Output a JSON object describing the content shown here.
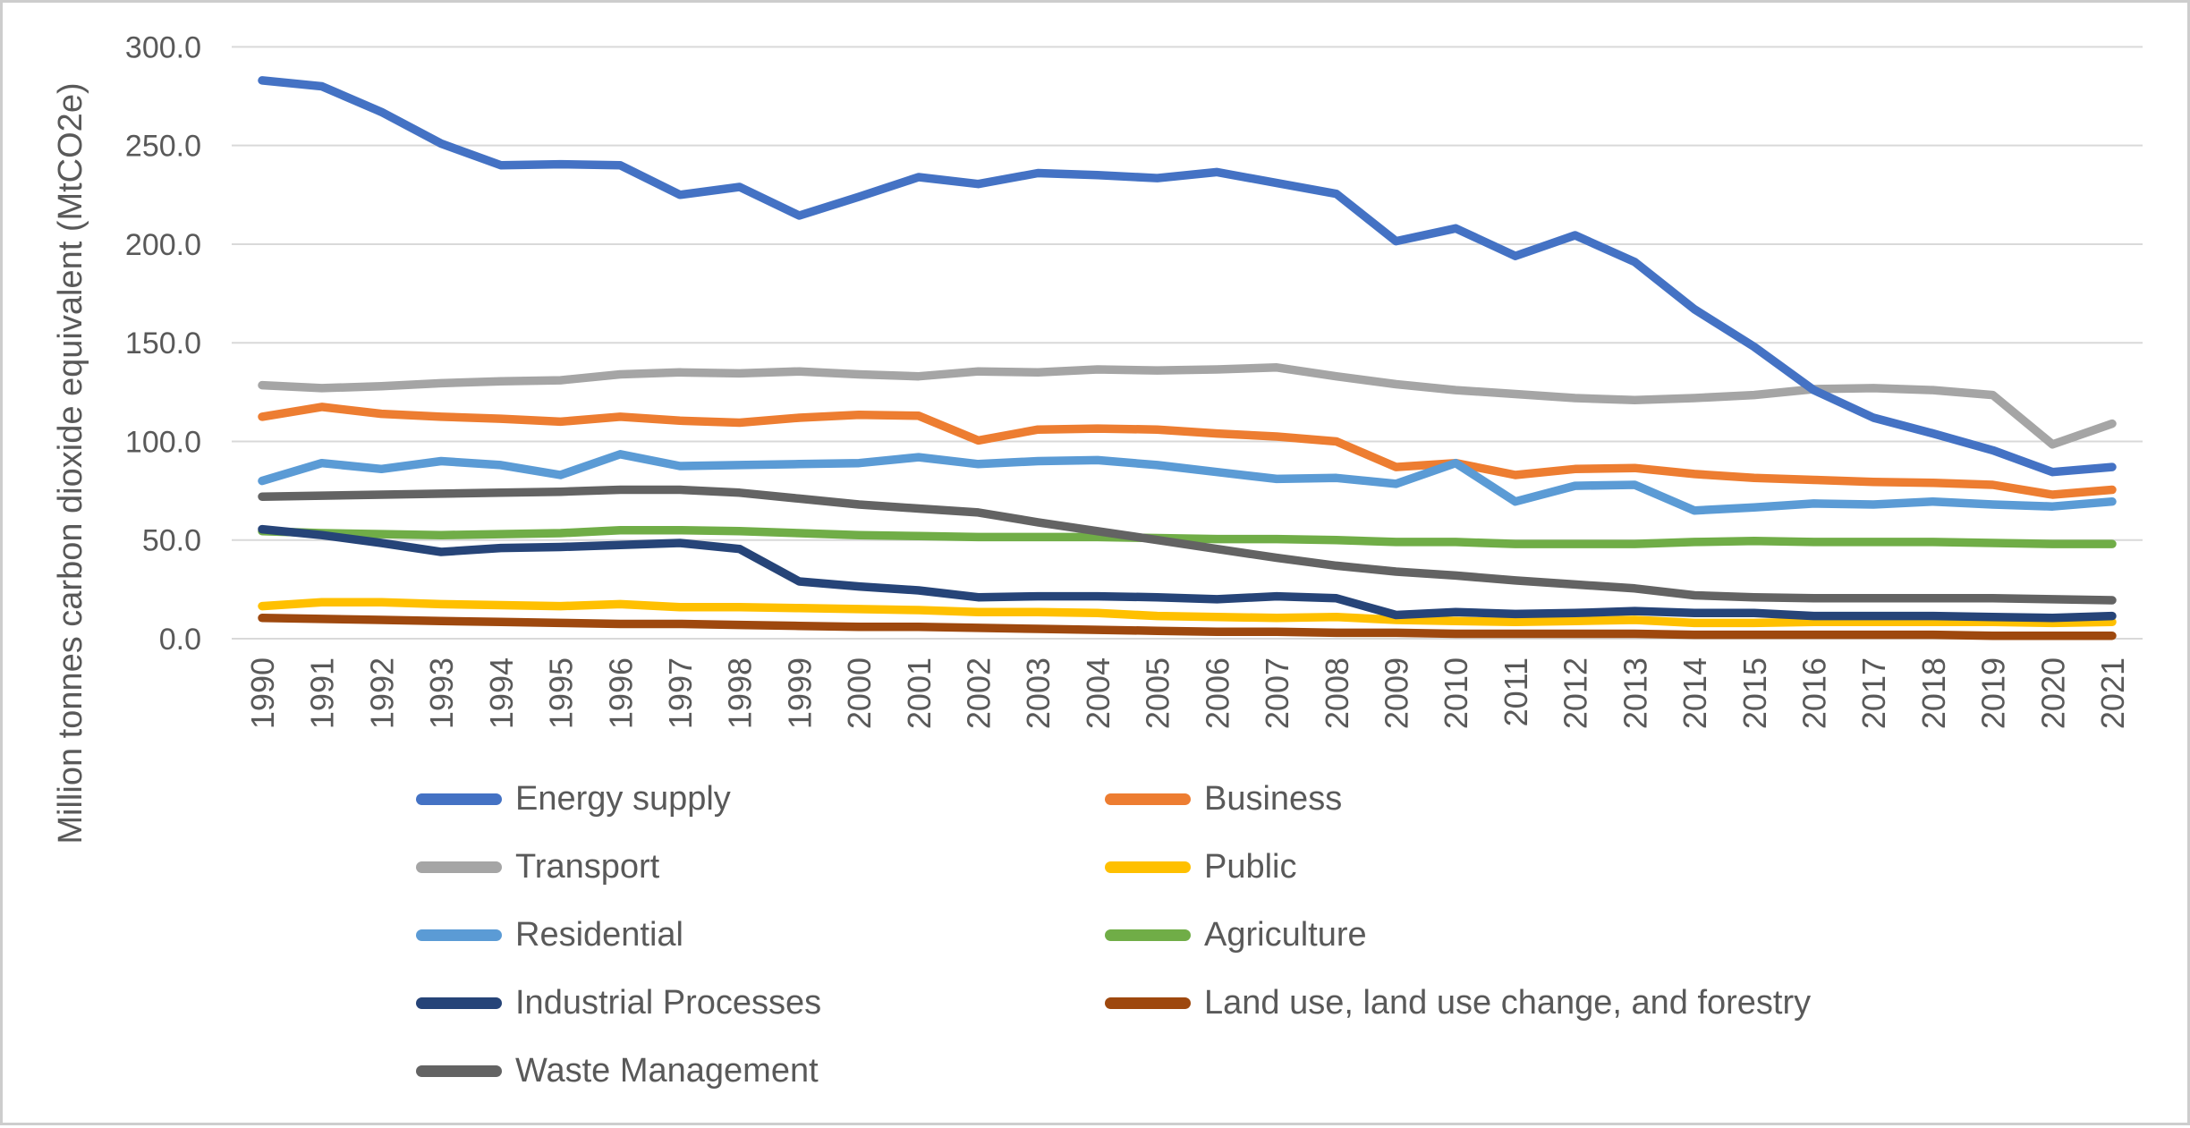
{
  "colors": {
    "grid": "#d9d9d9",
    "axis_text": "#595959",
    "frame_border": "#cdcdcd",
    "background": "#ffffff"
  },
  "chart_data": {
    "type": "line",
    "title": "",
    "ylabel": "Million tonnes carbon dioxide equivalent (MtCO2e)",
    "xlabel": "",
    "ylim": [
      0,
      300
    ],
    "y_tick_labels": [
      "0.0",
      "50.0",
      "100.0",
      "150.0",
      "200.0",
      "250.0",
      "300.0"
    ],
    "y_tick_values": [
      0,
      50,
      100,
      150,
      200,
      250,
      300
    ],
    "grid": "horizontal",
    "legend_position": "bottom",
    "x": [
      "1990",
      "1991",
      "1992",
      "1993",
      "1994",
      "1995",
      "1996",
      "1997",
      "1998",
      "1999",
      "2000",
      "2001",
      "2002",
      "2003",
      "2004",
      "2005",
      "2006",
      "2007",
      "2008",
      "2009",
      "2010",
      "2011",
      "2012",
      "2013",
      "2014",
      "2015",
      "2016",
      "2017",
      "2018",
      "2019",
      "2020",
      "2021"
    ],
    "series": [
      {
        "key": "energy-supply",
        "name": "Energy supply",
        "color": "#4472c4",
        "values": [
          283,
          280,
          267,
          251,
          240,
          240.5,
          240,
          225,
          229,
          214.5,
          224,
          234,
          230.5,
          236,
          235,
          233.5,
          236.5,
          231,
          225.5,
          201.5,
          208,
          194,
          204.5,
          191,
          167,
          148,
          126,
          112,
          104,
          95.5,
          84.5,
          87
        ]
      },
      {
        "key": "business",
        "name": "Business",
        "color": "#ed7d31",
        "values": [
          112.5,
          117.5,
          114,
          112.5,
          111.5,
          110,
          112.5,
          110.5,
          109.5,
          112,
          113.5,
          113,
          100.5,
          106,
          106.5,
          106,
          104,
          102.5,
          100,
          87,
          89,
          83,
          86,
          86.5,
          83.5,
          81.5,
          80.5,
          79.5,
          79,
          78,
          73,
          75.5
        ]
      },
      {
        "key": "transport",
        "name": "Transport",
        "color": "#a5a5a5",
        "values": [
          128.5,
          127,
          128,
          129.5,
          130.5,
          131,
          134,
          135,
          134.5,
          135.5,
          134,
          133,
          135.5,
          135,
          136.5,
          136,
          136.5,
          137.5,
          133,
          129,
          126,
          124,
          122,
          121,
          122,
          123.5,
          126.5,
          127,
          126,
          123.5,
          98.5,
          109
        ]
      },
      {
        "key": "public",
        "name": "Public",
        "color": "#ffc000",
        "values": [
          16.5,
          18.5,
          18.5,
          17.5,
          17,
          16.5,
          17.5,
          16,
          16,
          15.5,
          15,
          14.5,
          13.5,
          13.5,
          13,
          11.5,
          11,
          10.5,
          11,
          9.5,
          9,
          8.5,
          9,
          9.5,
          8,
          8,
          8.5,
          8.5,
          8.5,
          8.5,
          8,
          8.5
        ]
      },
      {
        "key": "residential",
        "name": "Residential",
        "color": "#5b9bd5",
        "values": [
          80,
          89,
          86,
          90,
          88,
          83,
          93.5,
          87.5,
          88,
          88.5,
          89,
          92,
          88.5,
          90,
          90.5,
          88,
          84.5,
          81,
          81.5,
          78.5,
          89,
          69.5,
          77.5,
          78,
          65,
          66.5,
          68.5,
          68,
          69.5,
          68,
          67,
          69.5
        ]
      },
      {
        "key": "agriculture",
        "name": "Agriculture",
        "color": "#70ad47",
        "values": [
          54.5,
          53.5,
          53,
          52.5,
          53,
          53.5,
          55,
          55,
          54.5,
          53.5,
          52.5,
          52,
          51.5,
          51.5,
          51.5,
          51,
          50.5,
          50.5,
          50,
          49,
          49,
          48,
          48,
          48,
          49,
          49.5,
          49,
          49,
          49,
          48.5,
          48,
          48
        ]
      },
      {
        "key": "industrial-processes",
        "name": "Industrial Processes",
        "color": "#264478",
        "values": [
          55.5,
          52.5,
          48.5,
          44,
          46,
          46.5,
          47.5,
          48.5,
          45.5,
          29,
          26.5,
          24.5,
          21,
          21.5,
          21.5,
          21,
          20,
          21.5,
          20.5,
          12,
          13.5,
          12.5,
          13,
          14,
          13,
          13,
          11.5,
          11.5,
          11.5,
          11,
          10.5,
          11.5
        ]
      },
      {
        "key": "land-use",
        "name": "Land use, land use change, and forestry",
        "color": "#9e480e",
        "values": [
          10.5,
          10,
          9.5,
          9,
          8.5,
          8,
          7.5,
          7.5,
          7,
          6.5,
          6,
          6,
          5.5,
          5,
          4.5,
          4,
          3.5,
          3.5,
          3,
          3,
          2.5,
          2.5,
          2.5,
          2.5,
          2,
          2,
          2,
          2,
          2,
          1.5,
          1.5,
          1.5
        ]
      },
      {
        "key": "waste-management",
        "name": "Waste Management",
        "color": "#636363",
        "values": [
          72,
          72.5,
          73,
          73.5,
          74,
          74.5,
          75.5,
          75.5,
          74,
          71,
          68,
          66,
          64,
          59,
          54.5,
          50,
          45.5,
          41,
          37,
          34,
          32,
          29.5,
          27.5,
          25.5,
          22,
          21,
          20.5,
          20.5,
          20.5,
          20.5,
          20,
          19.5
        ]
      }
    ]
  }
}
